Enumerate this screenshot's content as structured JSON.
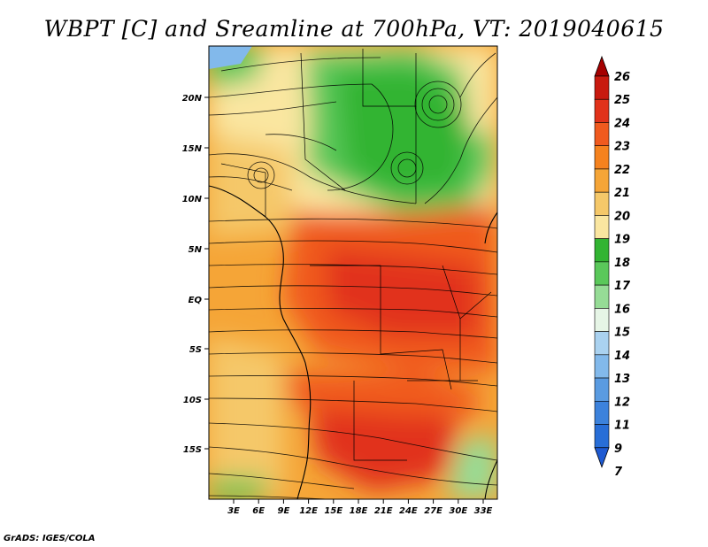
{
  "title": "WBPT [C] and Sreamline at 700hPa, VT: 2019040615",
  "credit": "GrADS: IGES/COLA",
  "map": {
    "lat_ticks": [
      "20N",
      "15N",
      "10N",
      "5N",
      "EQ",
      "5S",
      "10S",
      "15S"
    ],
    "lon_ticks": [
      "3E",
      "6E",
      "9E",
      "12E",
      "15E",
      "18E",
      "21E",
      "24E",
      "27E",
      "30E",
      "33E"
    ]
  },
  "colorbar": {
    "labels": [
      "26",
      "25",
      "24",
      "23",
      "22",
      "21",
      "20",
      "19",
      "18",
      "17",
      "16",
      "15",
      "14",
      "13",
      "12",
      "11",
      "9",
      "7"
    ],
    "colors": [
      "#a50000",
      "#c81a0f",
      "#e1321a",
      "#f05a1e",
      "#f5821e",
      "#f5a537",
      "#f5c869",
      "#fae6a0",
      "#32b432",
      "#5ac85a",
      "#96dc96",
      "#e6f5e6",
      "#aad2f0",
      "#82b9eb",
      "#5a9be1",
      "#3c82dc",
      "#286ed7",
      "#1e5ad2"
    ]
  }
}
